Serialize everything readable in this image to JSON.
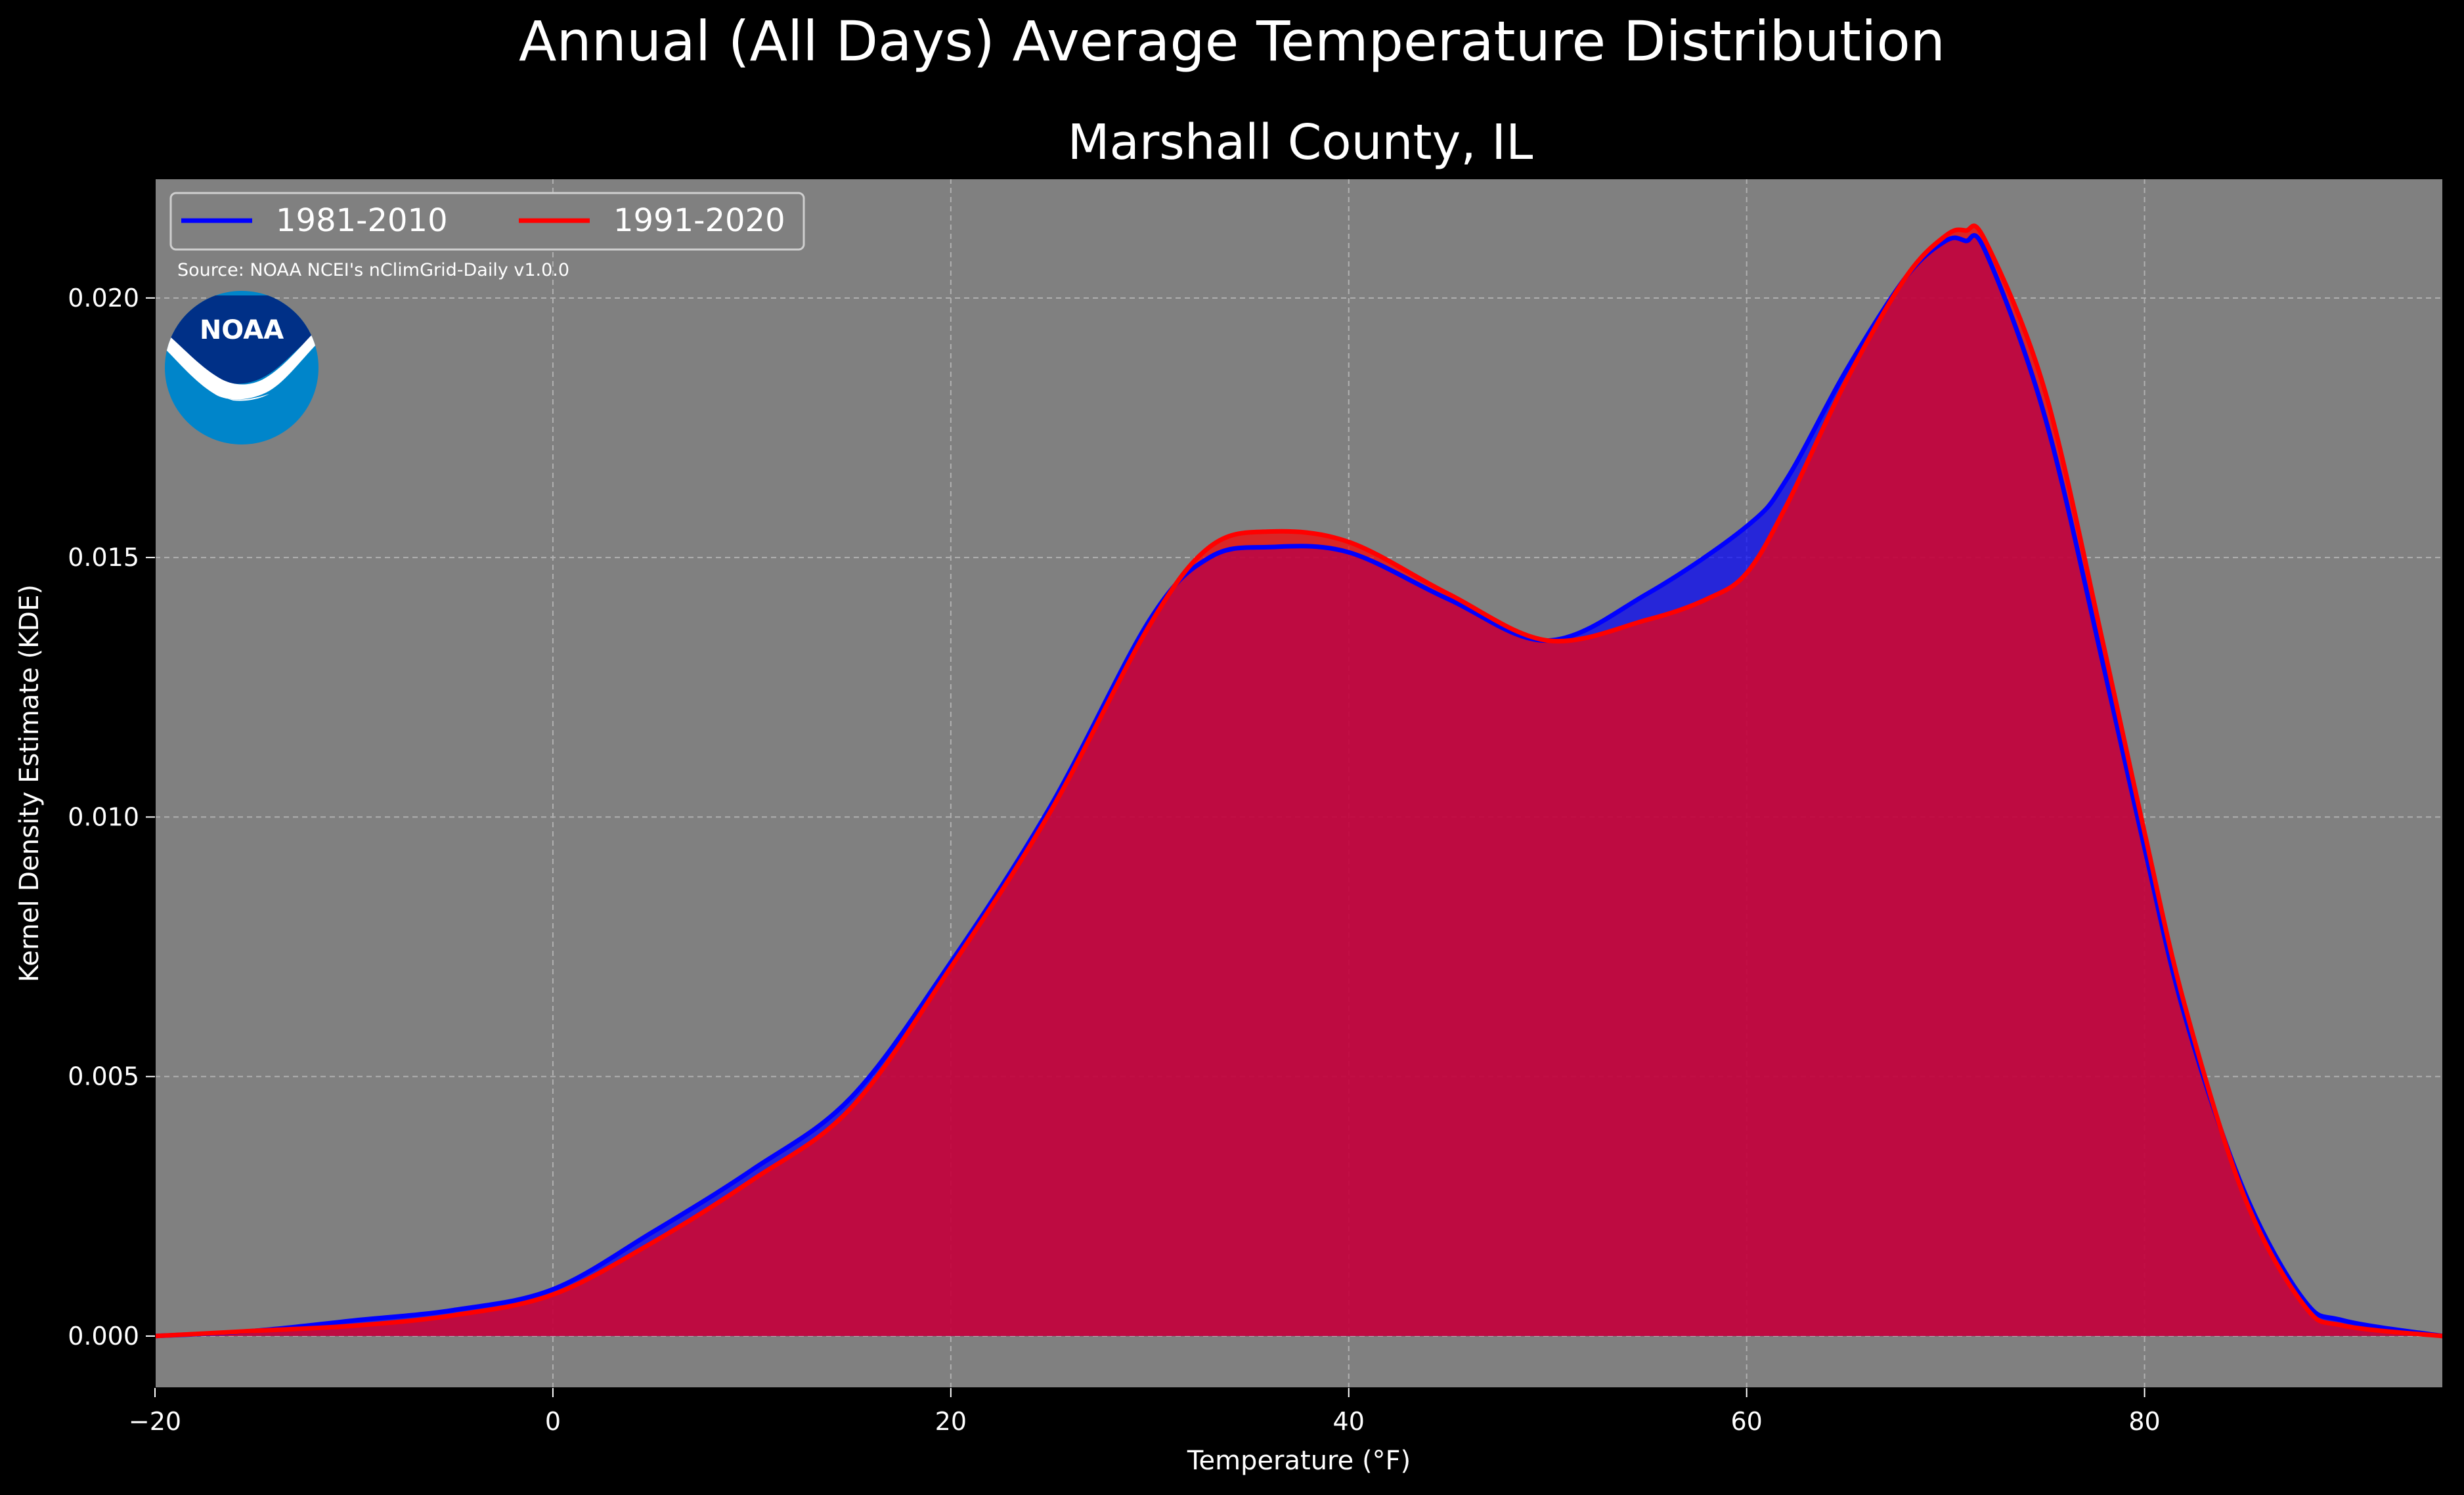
{
  "suptitle": "Annual (All Days) Average Temperature Distribution",
  "source": "Source: NOAA NCEI's nClimGrid-Daily v1.0.0",
  "logo": {
    "icon": "noaa-logo",
    "text": "NOAA",
    "colors": {
      "outer": "#0085CA",
      "inner": "#003087"
    }
  },
  "chart_data": {
    "type": "area",
    "title": "Marshall County, IL",
    "xlabel": "Temperature (°F)",
    "ylabel": "Kernel Density Estimate (KDE)",
    "xlim": [
      -20,
      95
    ],
    "ylim": [
      -0.001,
      0.0223
    ],
    "xticks": [
      -20,
      0,
      20,
      40,
      60,
      80
    ],
    "yticks": [
      0.0,
      0.005,
      0.01,
      0.015,
      0.02
    ],
    "xtick_labels": [
      "−20",
      "0",
      "20",
      "40",
      "60",
      "80"
    ],
    "ytick_labels": [
      "0.000",
      "0.005",
      "0.010",
      "0.015",
      "0.020"
    ],
    "grid": true,
    "legend": {
      "placement": "upper-left",
      "ncol": 2
    },
    "background": "#808080",
    "series": [
      {
        "name": "1981-2010",
        "color": "#0000FF",
        "x": [
          -20,
          -15,
          -10,
          -5,
          0,
          5,
          10,
          15,
          20,
          25,
          30,
          33,
          36,
          40,
          45,
          50,
          55,
          60,
          62,
          65,
          68,
          70,
          71,
          72,
          75,
          78,
          80,
          82,
          85,
          88,
          90,
          95
        ],
        "y": [
          0.0,
          0.0001,
          0.0003,
          0.0005,
          0.0009,
          0.002,
          0.0032,
          0.0046,
          0.0072,
          0.0102,
          0.0138,
          0.015,
          0.0152,
          0.0151,
          0.0142,
          0.0134,
          0.0143,
          0.0156,
          0.0165,
          0.0186,
          0.0204,
          0.0211,
          0.0211,
          0.0209,
          0.0177,
          0.0128,
          0.0094,
          0.0062,
          0.0028,
          0.0007,
          0.0003,
          0.0
        ]
      },
      {
        "name": "1991-2020",
        "color": "#FF0000",
        "x": [
          -20,
          -15,
          -10,
          -5,
          0,
          5,
          10,
          15,
          20,
          25,
          30,
          33,
          36,
          40,
          45,
          50,
          55,
          58,
          60,
          62,
          65,
          68,
          70,
          71,
          72,
          75,
          78,
          80,
          82,
          85,
          88,
          90,
          95
        ],
        "y": [
          0.0,
          0.0001,
          0.0002,
          0.0004,
          0.0008,
          0.0018,
          0.003,
          0.0044,
          0.0071,
          0.0101,
          0.0137,
          0.0152,
          0.0155,
          0.0153,
          0.0143,
          0.0134,
          0.0138,
          0.0142,
          0.0147,
          0.016,
          0.0184,
          0.0204,
          0.0212,
          0.0213,
          0.0211,
          0.0182,
          0.0132,
          0.0097,
          0.0064,
          0.0027,
          0.0006,
          0.0002,
          0.0
        ]
      }
    ]
  }
}
